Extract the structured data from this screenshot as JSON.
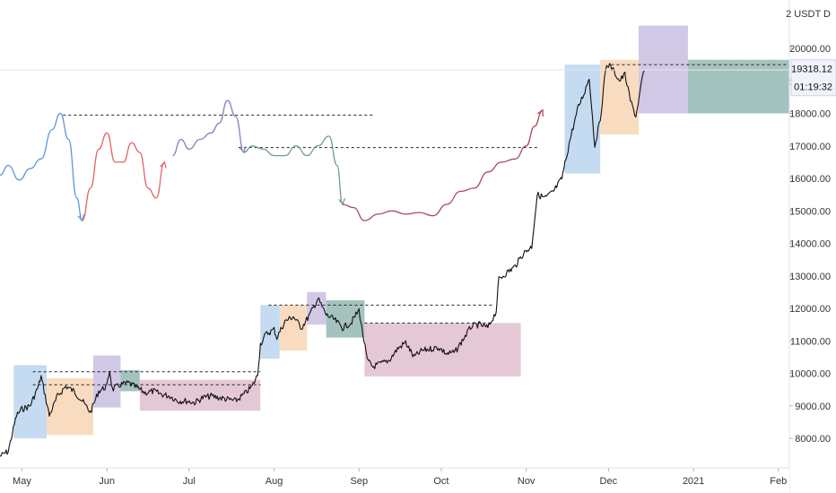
{
  "chart_data": {
    "type": "candlestick-line",
    "instrument_label": "2 USDT D",
    "y_axis": {
      "min": 7300,
      "max": 20900,
      "ticks": [
        "8000.00",
        "9000.00",
        "10000.00",
        "11000.00",
        "12000.00",
        "13000.00",
        "14000.00",
        "15000.00",
        "16000.00",
        "17000.00",
        "18000.00",
        "19000.00",
        "20000.00"
      ]
    },
    "x_axis": {
      "ticks": [
        {
          "label": "May",
          "date": "2020-05-01"
        },
        {
          "label": "Jun",
          "date": "2020-06-01"
        },
        {
          "label": "Jul",
          "date": "2020-07-01"
        },
        {
          "label": "Aug",
          "date": "2020-08-01"
        },
        {
          "label": "Sep",
          "date": "2020-09-01"
        },
        {
          "label": "Oct",
          "date": "2020-10-01"
        },
        {
          "label": "Nov",
          "date": "2020-11-01"
        },
        {
          "label": "Dec",
          "date": "2020-12-01"
        },
        {
          "label": "2021",
          "date": "2021-01-01"
        },
        {
          "label": "Feb",
          "date": "2021-02-01"
        }
      ],
      "range": [
        "2020-04-23",
        "2021-02-05"
      ]
    },
    "price_badge": {
      "value": "19318.12",
      "countdown": "01:19:32"
    },
    "price_path": [
      [
        "2020-04-23",
        7450
      ],
      [
        "2020-04-26",
        7600
      ],
      [
        "2020-04-29",
        8700
      ],
      [
        "2020-05-01",
        8900
      ],
      [
        "2020-05-04",
        9000
      ],
      [
        "2020-05-07",
        9600
      ],
      [
        "2020-05-08",
        9900
      ],
      [
        "2020-05-11",
        8700
      ],
      [
        "2020-05-14",
        9300
      ],
      [
        "2020-05-17",
        9600
      ],
      [
        "2020-05-20",
        9450
      ],
      [
        "2020-05-23",
        9150
      ],
      [
        "2020-05-26",
        8800
      ],
      [
        "2020-05-29",
        9450
      ],
      [
        "2020-06-01",
        9600
      ],
      [
        "2020-06 -02",
        10100
      ],
      [
        "2020-06-03",
        9500
      ],
      [
        "2020-06-06",
        9650
      ],
      [
        "2020-06-09",
        9700
      ],
      [
        "2020-06-12",
        9550
      ],
      [
        "2020-06-15",
        9400
      ],
      [
        "2020-06-18",
        9450
      ],
      [
        "2020-06-21",
        9350
      ],
      [
        "2020-06-24",
        9300
      ],
      [
        "2020-06-27",
        9150
      ],
      [
        "2020-06-30",
        9150
      ],
      [
        "2020-07-03",
        9100
      ],
      [
        "2020-07-06",
        9250
      ],
      [
        "2020-07-09",
        9300
      ],
      [
        "2020-07-12",
        9250
      ],
      [
        "2020-07-15",
        9200
      ],
      [
        "2020-07-18",
        9150
      ],
      [
        "2020-07-21",
        9350
      ],
      [
        "2020-07-24",
        9600
      ],
      [
        "2020-07-26",
        9950
      ],
      [
        "2020-07-27",
        10900
      ],
      [
        "2020-07-29",
        11200
      ],
      [
        "2020-08-01",
        11350
      ],
      [
        "2020-08-02",
        11100
      ],
      [
        "2020-08-05",
        11600
      ],
      [
        "2020-08-08",
        11750
      ],
      [
        "2020-08-11",
        11400
      ],
      [
        "2020-08-14",
        11800
      ],
      [
        "2020-08-17",
        12300
      ],
      [
        "2020-08-20",
        11800
      ],
      [
        "2020-08-23",
        11650
      ],
      [
        "2020-08-26",
        11400
      ],
      [
        "2020-08-29",
        11550
      ],
      [
        "2020-09-01",
        11950
      ],
      [
        "2020-09-02",
        11400
      ],
      [
        "2020-09-04",
        10400
      ],
      [
        "2020-09-06",
        10200
      ],
      [
        "2020-09-09",
        10300
      ],
      [
        "2020-09-12",
        10400
      ],
      [
        "2020-09-15",
        10750
      ],
      [
        "2020-09-18",
        10950
      ],
      [
        "2020-09-21",
        10500
      ],
      [
        "2020-09-24",
        10700
      ],
      [
        "2020-09-27",
        10750
      ],
      [
        "2020-09-30",
        10800
      ],
      [
        "2020-10-03",
        10600
      ],
      [
        "2020-10-06",
        10650
      ],
      [
        "2020-10-09",
        11050
      ],
      [
        "2020-10-12",
        11450
      ],
      [
        "2020-10-15",
        11500
      ],
      [
        "2020-10-18",
        11400
      ],
      [
        "2020-10-21",
        11900
      ],
      [
        "2020-10-22",
        12900
      ],
      [
        "2020-10-25",
        13100
      ],
      [
        "2020-10-28",
        13300
      ],
      [
        "2020-10-31",
        13700
      ],
      [
        "2020-11-03",
        13900
      ],
      [
        "2020-11-05",
        15500
      ],
      [
        "2020-11-08",
        15400
      ],
      [
        "2020-11-11",
        15600
      ],
      [
        "2020-11-14",
        16000
      ],
      [
        "2020-11-17",
        17200
      ],
      [
        "2020-11-20",
        18200
      ],
      [
        "2020-11-22",
        18600
      ],
      [
        "2020-11-24",
        19100
      ],
      [
        "2020-11-26",
        17000
      ],
      [
        "2020-11-28",
        17800
      ],
      [
        "2020-11-30",
        19400
      ],
      [
        "2020-12-01",
        19500
      ],
      [
        "2020-12-03",
        19300
      ],
      [
        "2020-12-05",
        19000
      ],
      [
        "2020-12-07",
        19200
      ],
      [
        "2020-12-09",
        18400
      ],
      [
        "2020-12-11",
        17900
      ],
      [
        "2020-12-13",
        18900
      ],
      [
        "2020-12-14",
        19318
      ]
    ],
    "zones": [
      {
        "start": "2020-04-28",
        "end": "2020-05-10",
        "top": 10250,
        "bottom": 8000,
        "color": "#9fc5e8"
      },
      {
        "start": "2020-05-10",
        "end": "2020-05-27",
        "top": 9850,
        "bottom": 8100,
        "color": "#f6c79a"
      },
      {
        "start": "2020-05-27",
        "end": "2020-06-06",
        "top": 10550,
        "bottom": 8950,
        "color": "#b4a7d6"
      },
      {
        "start": "2020-06-06",
        "end": "2020-06-13",
        "top": 10100,
        "bottom": 9450,
        "color": "#6d9e96"
      },
      {
        "start": "2020-06-13",
        "end": "2020-07-27",
        "top": 9800,
        "bottom": 8850,
        "color": "#d5a6bd"
      },
      {
        "start": "2020-07-27",
        "end": "2020-08-03",
        "top": 12100,
        "bottom": 10450,
        "color": "#9fc5e8"
      },
      {
        "start": "2020-08-03",
        "end": "2020-08-13",
        "top": 12100,
        "bottom": 10700,
        "color": "#f6c79a"
      },
      {
        "start": "2020-08-13",
        "end": "2020-08-20",
        "top": 12500,
        "bottom": 11500,
        "color": "#b4a7d6"
      },
      {
        "start": "2020-08-20",
        "end": "2020-09-03",
        "top": 12250,
        "bottom": 11100,
        "color": "#6d9e96"
      },
      {
        "start": "2020-09-03",
        "end": "2020-10-30",
        "top": 11550,
        "bottom": 9900,
        "color": "#d5a6bd"
      },
      {
        "start": "2020-11-15",
        "end": "2020-11-28",
        "top": 19500,
        "bottom": 16150,
        "color": "#9fc5e8"
      },
      {
        "start": "2020-11-28",
        "end": "2020-12-12",
        "top": 19650,
        "bottom": 17350,
        "color": "#f6c79a"
      },
      {
        "start": "2020-12-12",
        "end": "2020-12-30",
        "top": 20700,
        "bottom": 18000,
        "color": "#b4a7d6"
      },
      {
        "start": "2020-12-30",
        "end": "2021-02-05",
        "top": 19650,
        "bottom": 18000,
        "color": "#6d9e96"
      }
    ],
    "levels": [
      {
        "start": "2020-05-05",
        "end": "2020-07-27",
        "value": 10050
      },
      {
        "start": "2020-05-05",
        "end": "2020-07-27",
        "value": 9650
      },
      {
        "start": "2020-07-30",
        "end": "2020-10-20",
        "value": 12100
      },
      {
        "start": "2020-09-03",
        "end": "2020-10-20",
        "value": 11550
      },
      {
        "start": "2020-05-16",
        "end": "2020-09-06",
        "value": 17950
      },
      {
        "start": "2020-07-19",
        "end": "2020-11-05",
        "value": 16950
      },
      {
        "start": "2020-12-02",
        "end": "2021-02-05",
        "value": 19500
      }
    ],
    "projection_segments": [
      {
        "color": "#5b9bd5",
        "points": [
          [
            "2020-04-23",
            16100
          ],
          [
            "2020-04-26",
            16400
          ],
          [
            "2020-04-30",
            15950
          ],
          [
            "2020-05-04",
            16300
          ],
          [
            "2020-05-08",
            16600
          ],
          [
            "2020-05-12",
            17500
          ],
          [
            "2020-05-15",
            18000
          ],
          [
            "2020-05-18",
            17200
          ],
          [
            "2020-05-21",
            15400
          ],
          [
            "2020-05-23",
            14700
          ]
        ]
      },
      {
        "color": "#e06666",
        "points": [
          [
            "2020-05-23",
            14700
          ],
          [
            "2020-05-26",
            15700
          ],
          [
            "2020-05-29",
            16900
          ],
          [
            "2020-06-01",
            17400
          ],
          [
            "2020-06-04",
            16500
          ],
          [
            "2020-06-07",
            16500
          ],
          [
            "2020-06-10",
            17100
          ],
          [
            "2020-06-13",
            16800
          ],
          [
            "2020-06-16",
            15700
          ],
          [
            "2020-06-19",
            15400
          ],
          [
            "2020-06-22",
            16500
          ]
        ]
      },
      {
        "color": "#8e7cc3",
        "points": [
          [
            "2020-06-25",
            16700
          ],
          [
            "2020-06-28",
            17200
          ],
          [
            "2020-07-01",
            16900
          ],
          [
            "2020-07-05",
            17200
          ],
          [
            "2020-07-09",
            17400
          ],
          [
            "2020-07-12",
            17700
          ],
          [
            "2020-07-15",
            18400
          ],
          [
            "2020-07-18",
            17900
          ],
          [
            "2020-07-21",
            16800
          ]
        ]
      },
      {
        "color": "#6d9e96",
        "points": [
          [
            "2020-07-21",
            16800
          ],
          [
            "2020-07-24",
            17000
          ],
          [
            "2020-07-28",
            16900
          ],
          [
            "2020-08-01",
            16700
          ],
          [
            "2020-08-05",
            16700
          ],
          [
            "2020-08-09",
            17000
          ],
          [
            "2020-08-13",
            16700
          ],
          [
            "2020-08-17",
            17000
          ],
          [
            "2020-08-21",
            17300
          ],
          [
            "2020-08-24",
            16400
          ],
          [
            "2020-08-26",
            15200
          ]
        ]
      },
      {
        "color": "#a64d5a",
        "points": [
          [
            "2020-08-26",
            15200
          ],
          [
            "2020-08-30",
            15100
          ],
          [
            "2020-09-03",
            14700
          ],
          [
            "2020-09-08",
            14900
          ],
          [
            "2020-09-13",
            15000
          ],
          [
            "2020-09-18",
            14900
          ],
          [
            "2020-09-23",
            14950
          ],
          [
            "2020-09-28",
            14850
          ],
          [
            "2020-10-03",
            15200
          ],
          [
            "2020-10-08",
            15600
          ],
          [
            "2020-10-13",
            15700
          ],
          [
            "2020-10-18",
            16200
          ],
          [
            "2020-10-23",
            16500
          ],
          [
            "2020-10-28",
            16600
          ],
          [
            "2020-11-01",
            17000
          ],
          [
            "2020-11-04",
            17600
          ],
          [
            "2020-11-07",
            18100
          ]
        ]
      }
    ],
    "colors": {
      "price": "#111111",
      "level": "#222222",
      "axis_text": "#333333",
      "badge_bg": "#f0f3fa",
      "badge_border": "#d0d4dc"
    }
  }
}
